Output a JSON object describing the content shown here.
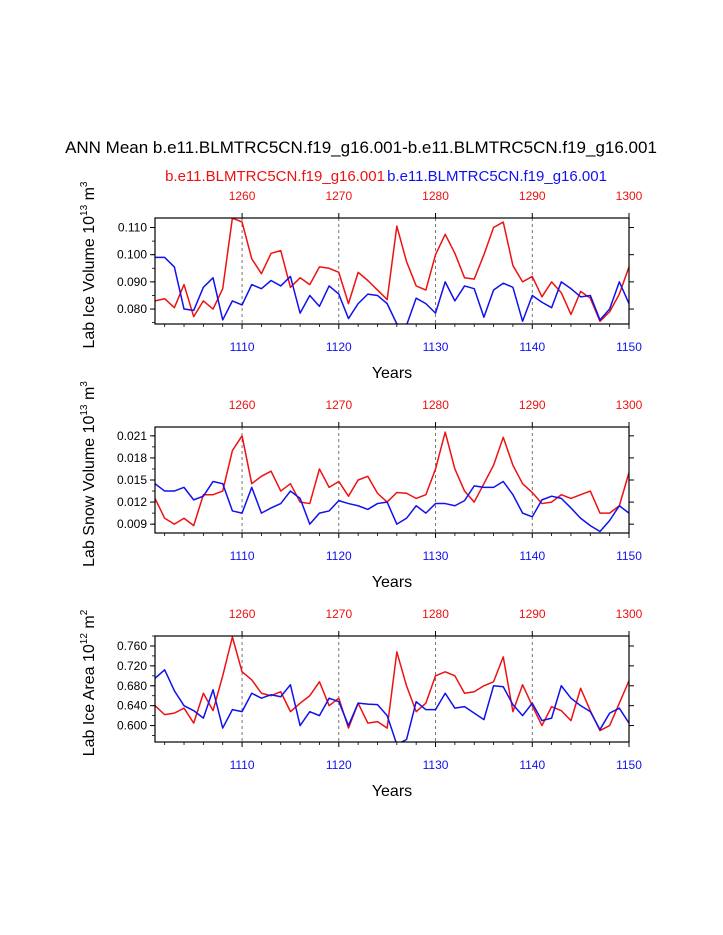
{
  "figure": {
    "title": "ANN Mean b.e11.BLMTRC5CN.f19_g16.001-b.e11.BLMTRC5CN.f19_g16.001",
    "legend_red": "b.e11.BLMTRC5CN.f19_g16.001",
    "legend_blue": "b.e11.BLMTRC5CN.f19_g16.001",
    "colors": {
      "red": "#ee1111",
      "blue": "#1111ee",
      "axis": "#000000",
      "grid": "#555555"
    }
  },
  "chart_data": [
    {
      "type": "line",
      "ylabel": "Lab Ice Volume",
      "yunit_base": "10",
      "yunit_exp": "13",
      "yunit_tail": "m",
      "yunit_tail_exp": "3",
      "xlabel": "Years",
      "xlim_bottom": [
        1101,
        1150
      ],
      "xlim_top": [
        1251,
        1300
      ],
      "ylim": [
        0.0745,
        0.1135
      ],
      "yticks": [
        0.08,
        0.09,
        0.1,
        0.11
      ],
      "ytick_labels": [
        "0.080",
        "0.090",
        "0.100",
        "0.110"
      ],
      "xticks_bottom": [
        1110,
        1120,
        1130,
        1140,
        1150
      ],
      "xtick_labels_bottom": [
        "1110",
        "1120",
        "1130",
        "1140",
        "1150"
      ],
      "xticks_top": [
        1260,
        1270,
        1280,
        1290,
        1300
      ],
      "xtick_labels_top": [
        "1260",
        "1270",
        "1280",
        "1290",
        "1300"
      ],
      "gridlines_x_bottom": [
        1110,
        1120,
        1130,
        1140
      ],
      "series": [
        {
          "name": "b.e11.BLMTRC5CN.f19_g16.001 (years 1251-1300)",
          "color": "red",
          "values": [
            0.083,
            0.0838,
            0.0805,
            0.089,
            0.0772,
            0.083,
            0.08,
            0.0875,
            0.1135,
            0.112,
            0.0985,
            0.093,
            0.1005,
            0.1015,
            0.088,
            0.0915,
            0.089,
            0.0955,
            0.095,
            0.0935,
            0.082,
            0.0935,
            0.0905,
            0.087,
            0.0835,
            0.1105,
            0.0975,
            0.0885,
            0.087,
            0.1,
            0.1075,
            0.1005,
            0.0915,
            0.091,
            0.1,
            0.11,
            0.112,
            0.096,
            0.09,
            0.092,
            0.0845,
            0.09,
            0.086,
            0.078,
            0.0865,
            0.084,
            0.0755,
            0.079,
            0.0855,
            0.0955
          ]
        },
        {
          "name": "b.e11.BLMTRC5CN.f19_g16.001 (years 1101-1150)",
          "color": "blue",
          "values": [
            0.099,
            0.099,
            0.0955,
            0.08,
            0.0795,
            0.088,
            0.0915,
            0.076,
            0.083,
            0.0815,
            0.089,
            0.0875,
            0.0905,
            0.0885,
            0.092,
            0.0785,
            0.085,
            0.081,
            0.0885,
            0.0855,
            0.0765,
            0.082,
            0.0855,
            0.085,
            0.082,
            0.0745,
            0.074,
            0.084,
            0.082,
            0.0785,
            0.09,
            0.083,
            0.0885,
            0.0875,
            0.077,
            0.087,
            0.0895,
            0.088,
            0.0755,
            0.085,
            0.0825,
            0.0805,
            0.09,
            0.0875,
            0.0845,
            0.085,
            0.076,
            0.08,
            0.09,
            0.082
          ]
        }
      ]
    },
    {
      "type": "line",
      "ylabel": "Lab Snow Volume",
      "yunit_base": "10",
      "yunit_exp": "13",
      "yunit_tail": "m",
      "yunit_tail_exp": "3",
      "xlabel": "Years",
      "xlim_bottom": [
        1101,
        1150
      ],
      "xlim_top": [
        1251,
        1300
      ],
      "ylim": [
        0.0078,
        0.0222
      ],
      "yticks": [
        0.009,
        0.012,
        0.015,
        0.018,
        0.021
      ],
      "ytick_labels": [
        "0.009",
        "0.012",
        "0.015",
        "0.018",
        "0.021"
      ],
      "xticks_bottom": [
        1110,
        1120,
        1130,
        1140,
        1150
      ],
      "xtick_labels_bottom": [
        "1110",
        "1120",
        "1130",
        "1140",
        "1150"
      ],
      "xticks_top": [
        1260,
        1270,
        1280,
        1290,
        1300
      ],
      "xtick_labels_top": [
        "1260",
        "1270",
        "1280",
        "1290",
        "1300"
      ],
      "gridlines_x_bottom": [
        1110,
        1120,
        1130,
        1140
      ],
      "series": [
        {
          "name": "b.e11.BLMTRC5CN.f19_g16.001 (years 1251-1300)",
          "color": "red",
          "values": [
            0.0125,
            0.0098,
            0.009,
            0.0098,
            0.0088,
            0.013,
            0.013,
            0.0135,
            0.019,
            0.021,
            0.0145,
            0.0155,
            0.0162,
            0.0135,
            0.0145,
            0.012,
            0.0118,
            0.0165,
            0.014,
            0.0148,
            0.0128,
            0.015,
            0.0155,
            0.0132,
            0.012,
            0.0133,
            0.0132,
            0.0125,
            0.013,
            0.0165,
            0.0215,
            0.0165,
            0.0135,
            0.012,
            0.0145,
            0.017,
            0.0208,
            0.017,
            0.0145,
            0.0133,
            0.0118,
            0.012,
            0.013,
            0.0125,
            0.013,
            0.0135,
            0.0105,
            0.0105,
            0.0115,
            0.016
          ]
        },
        {
          "name": "b.e11.BLMTRC5CN.f19_g16.001 (years 1101-1150)",
          "color": "blue",
          "values": [
            0.0145,
            0.0135,
            0.0135,
            0.014,
            0.0123,
            0.0128,
            0.0148,
            0.0145,
            0.0108,
            0.0105,
            0.014,
            0.0105,
            0.0112,
            0.0118,
            0.0135,
            0.0125,
            0.009,
            0.0105,
            0.0108,
            0.0122,
            0.0118,
            0.0115,
            0.011,
            0.0118,
            0.012,
            0.009,
            0.0098,
            0.0115,
            0.0105,
            0.0118,
            0.0118,
            0.0115,
            0.0122,
            0.0142,
            0.014,
            0.014,
            0.0148,
            0.013,
            0.0105,
            0.01,
            0.0123,
            0.0128,
            0.0125,
            0.0112,
            0.0098,
            0.0088,
            0.008,
            0.0095,
            0.0115,
            0.0105
          ]
        }
      ]
    },
    {
      "type": "line",
      "ylabel": "Lab Ice Area",
      "yunit_base": "10",
      "yunit_exp": "12",
      "yunit_tail": "m",
      "yunit_tail_exp": "2",
      "xlabel": "Years",
      "xlim_bottom": [
        1101,
        1150
      ],
      "xlim_top": [
        1251,
        1300
      ],
      "ylim": [
        0.567,
        0.78
      ],
      "yticks": [
        0.6,
        0.64,
        0.68,
        0.72,
        0.76
      ],
      "ytick_labels": [
        "0.600",
        "0.640",
        "0.680",
        "0.720",
        "0.760"
      ],
      "xticks_bottom": [
        1110,
        1120,
        1130,
        1140,
        1150
      ],
      "xtick_labels_bottom": [
        "1110",
        "1120",
        "1130",
        "1140",
        "1150"
      ],
      "xticks_top": [
        1260,
        1270,
        1280,
        1290,
        1300
      ],
      "xtick_labels_top": [
        "1260",
        "1270",
        "1280",
        "1290",
        "1300"
      ],
      "gridlines_x_bottom": [
        1110,
        1120,
        1130,
        1140
      ],
      "series": [
        {
          "name": "b.e11.BLMTRC5CN.f19_g16.001 (years 1251-1300)",
          "color": "red",
          "values": [
            0.64,
            0.622,
            0.625,
            0.635,
            0.605,
            0.665,
            0.63,
            0.7,
            0.778,
            0.708,
            0.692,
            0.665,
            0.66,
            0.668,
            0.628,
            0.645,
            0.66,
            0.688,
            0.64,
            0.655,
            0.595,
            0.645,
            0.605,
            0.608,
            0.595,
            0.748,
            0.68,
            0.628,
            0.645,
            0.7,
            0.708,
            0.7,
            0.665,
            0.668,
            0.68,
            0.688,
            0.738,
            0.628,
            0.682,
            0.64,
            0.6,
            0.638,
            0.63,
            0.61,
            0.675,
            0.63,
            0.59,
            0.6,
            0.645,
            0.69
          ]
        },
        {
          "name": "b.e11.BLMTRC5CN.f19_g16.001 (years 1101-1150)",
          "color": "blue",
          "values": [
            0.695,
            0.712,
            0.67,
            0.64,
            0.63,
            0.615,
            0.672,
            0.595,
            0.632,
            0.628,
            0.665,
            0.655,
            0.662,
            0.658,
            0.682,
            0.6,
            0.628,
            0.62,
            0.655,
            0.648,
            0.6,
            0.645,
            0.643,
            0.642,
            0.62,
            0.562,
            0.572,
            0.648,
            0.632,
            0.632,
            0.665,
            0.635,
            0.638,
            0.625,
            0.612,
            0.68,
            0.678,
            0.642,
            0.62,
            0.645,
            0.61,
            0.615,
            0.68,
            0.655,
            0.64,
            0.628,
            0.592,
            0.625,
            0.635,
            0.605
          ]
        }
      ]
    }
  ]
}
